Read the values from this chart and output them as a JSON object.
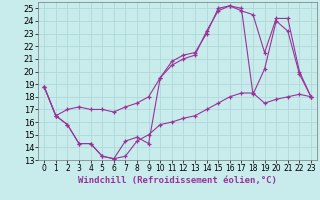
{
  "background_color": "#c8ecec",
  "grid_color": "#b0d8d8",
  "line_color": "#993399",
  "marker": "+",
  "xlabel": "Windchill (Refroidissement éolien,°C)",
  "xlabel_fontsize": 6.5,
  "tick_fontsize": 6,
  "xlim": [
    -0.5,
    23.5
  ],
  "ylim": [
    13,
    25.5
  ],
  "yticks": [
    13,
    14,
    15,
    16,
    17,
    18,
    19,
    20,
    21,
    22,
    23,
    24,
    25
  ],
  "xticks": [
    0,
    1,
    2,
    3,
    4,
    5,
    6,
    7,
    8,
    9,
    10,
    11,
    12,
    13,
    14,
    15,
    16,
    17,
    18,
    19,
    20,
    21,
    22,
    23
  ],
  "line1_x": [
    0,
    1,
    2,
    3,
    4,
    5,
    6,
    7,
    8,
    9,
    10,
    11,
    12,
    13,
    14,
    15,
    16,
    17,
    18,
    19,
    20,
    21,
    22,
    23
  ],
  "line1_y": [
    18.8,
    16.5,
    15.8,
    14.3,
    14.3,
    13.3,
    13.1,
    14.5,
    14.8,
    14.3,
    19.5,
    20.8,
    21.3,
    21.5,
    23.0,
    25.0,
    25.2,
    25.0,
    18.2,
    20.2,
    24.0,
    23.2,
    19.8,
    18.0
  ],
  "line2_x": [
    0,
    1,
    2,
    3,
    4,
    5,
    6,
    7,
    8,
    9,
    10,
    11,
    12,
    13,
    14,
    15,
    16,
    17,
    18,
    19,
    20,
    21,
    22,
    23
  ],
  "line2_y": [
    18.8,
    16.5,
    17.0,
    17.2,
    17.0,
    17.0,
    16.8,
    17.2,
    17.5,
    18.0,
    19.5,
    20.5,
    21.0,
    21.3,
    23.2,
    24.8,
    25.2,
    24.8,
    24.5,
    21.5,
    24.2,
    24.2,
    20.0,
    18.0
  ],
  "line3_x": [
    0,
    1,
    2,
    3,
    4,
    5,
    6,
    7,
    8,
    9,
    10,
    11,
    12,
    13,
    14,
    15,
    16,
    17,
    18,
    19,
    20,
    21,
    22,
    23
  ],
  "line3_y": [
    18.8,
    16.5,
    15.8,
    14.3,
    14.3,
    13.3,
    13.1,
    13.3,
    14.5,
    15.0,
    15.8,
    16.0,
    16.3,
    16.5,
    17.0,
    17.5,
    18.0,
    18.3,
    18.3,
    17.5,
    17.8,
    18.0,
    18.2,
    18.0
  ]
}
